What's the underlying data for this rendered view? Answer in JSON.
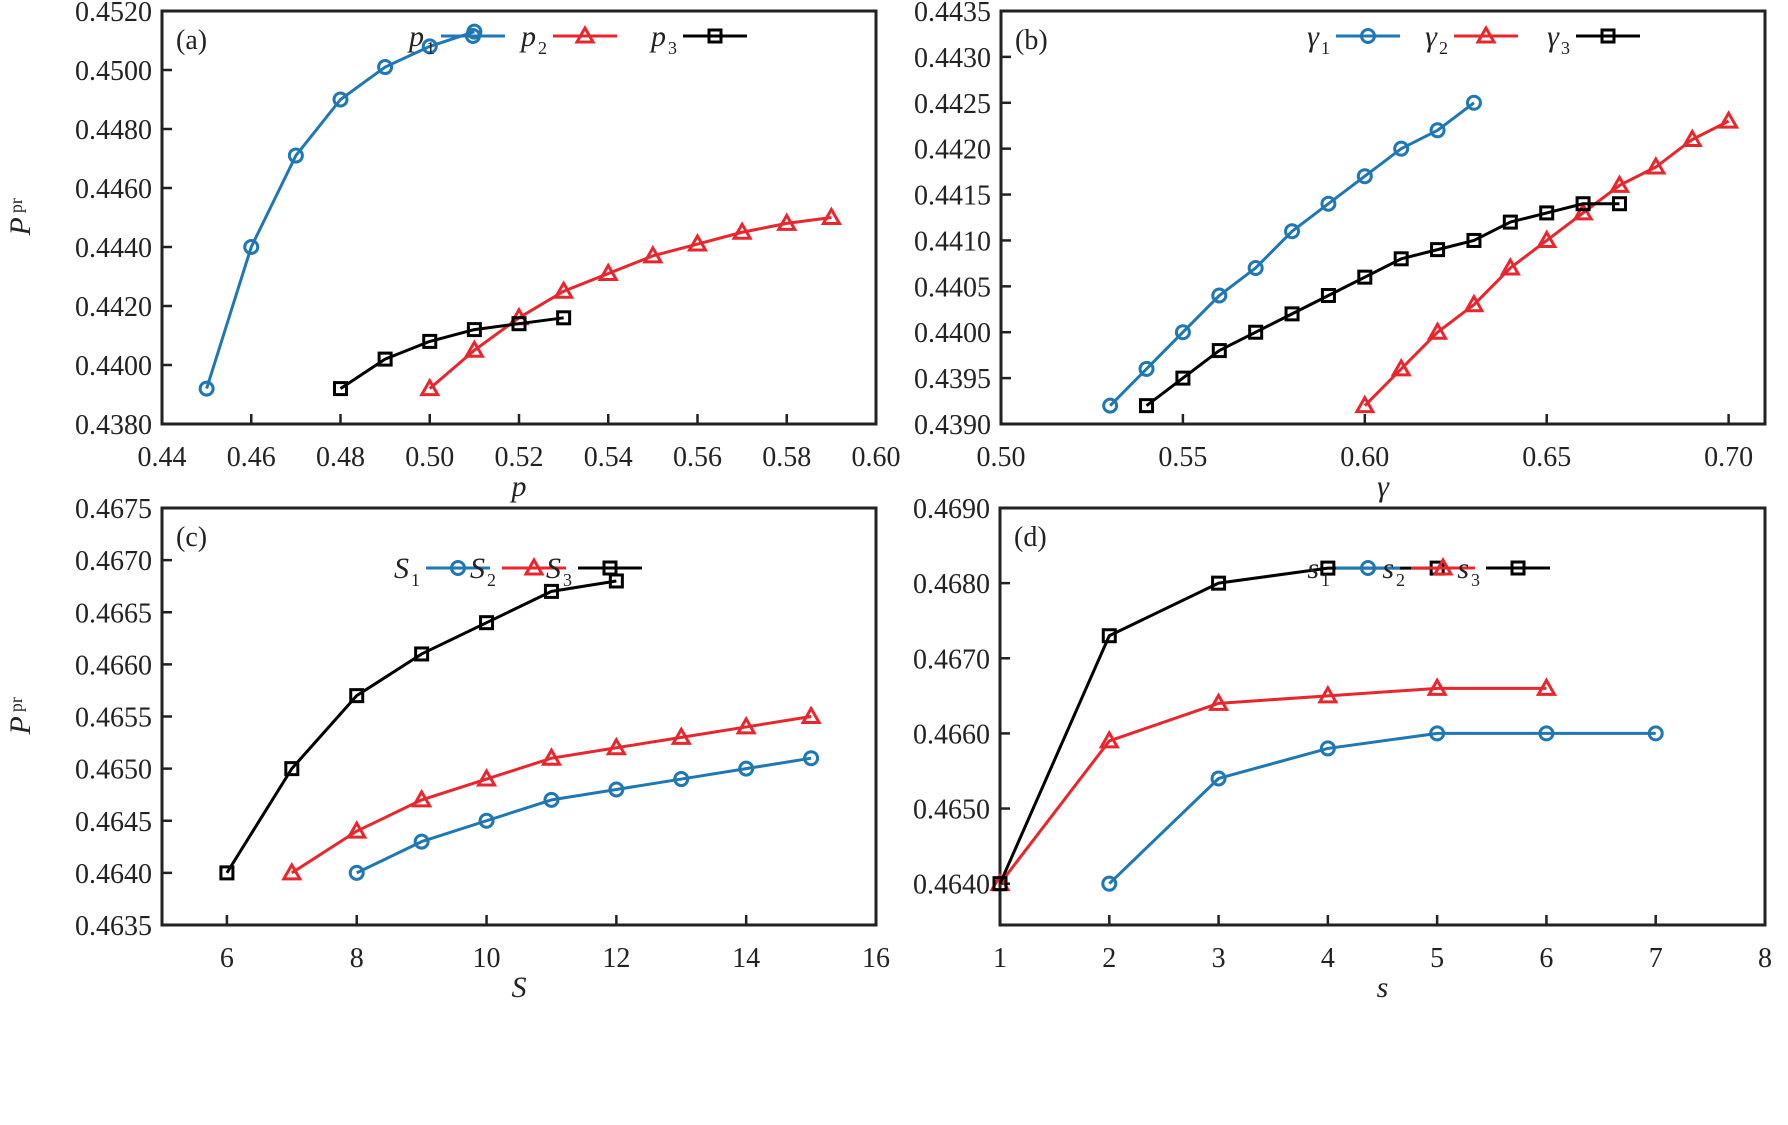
{
  "chart_data": [
    {
      "type": "line",
      "panel_label": "(a)",
      "xlabel": "p",
      "ylabel": "P",
      "ylabel_sub": "pr",
      "xlim": [
        0.44,
        0.6
      ],
      "ylim": [
        0.438,
        0.452
      ],
      "xticks": [
        "0.44",
        "0.46",
        "0.48",
        "0.50",
        "0.52",
        "0.54",
        "0.56",
        "0.58",
        "0.60"
      ],
      "yticks": [
        "0.4380",
        "0.4400",
        "0.4420",
        "0.4440",
        "0.4460",
        "0.4480",
        "0.4500",
        "0.4520"
      ],
      "legend_position": "top-right",
      "series": [
        {
          "name": "p",
          "sub": "1",
          "color": "#1f77b4",
          "marker": "circle",
          "x": [
            0.45,
            0.46,
            0.47,
            0.48,
            0.49,
            0.5,
            0.51
          ],
          "y": [
            0.4392,
            0.444,
            0.4471,
            0.449,
            0.4501,
            0.4508,
            0.4513
          ]
        },
        {
          "name": "p",
          "sub": "2",
          "color": "#e8262d",
          "marker": "triangle",
          "x": [
            0.5,
            0.51,
            0.52,
            0.53,
            0.54,
            0.55,
            0.56,
            0.57,
            0.58,
            0.59
          ],
          "y": [
            0.4392,
            0.4405,
            0.4416,
            0.4425,
            0.4431,
            0.4437,
            0.4441,
            0.4445,
            0.4448,
            0.445
          ]
        },
        {
          "name": "p",
          "sub": "3",
          "color": "#000000",
          "marker": "square",
          "x": [
            0.48,
            0.49,
            0.5,
            0.51,
            0.52,
            0.53
          ],
          "y": [
            0.4392,
            0.4402,
            0.4408,
            0.4412,
            0.4414,
            0.4416
          ]
        }
      ]
    },
    {
      "type": "line",
      "panel_label": "(b)",
      "xlabel": "γ",
      "ylabel": "",
      "ylabel_sub": "",
      "xlim": [
        0.5,
        0.71
      ],
      "ylim": [
        0.439,
        0.4435
      ],
      "xticks": [
        "0.50",
        "0.55",
        "0.60",
        "0.65",
        "0.70"
      ],
      "yticks": [
        "0.4390",
        "0.4395",
        "0.4400",
        "0.4405",
        "0.4410",
        "0.4415",
        "0.4420",
        "0.4425",
        "0.4430",
        "0.4435"
      ],
      "legend_position": "top-right",
      "series": [
        {
          "name": "γ",
          "sub": "1",
          "color": "#1f77b4",
          "marker": "circle",
          "x": [
            0.53,
            0.54,
            0.55,
            0.56,
            0.57,
            0.58,
            0.59,
            0.6,
            0.61,
            0.62,
            0.63
          ],
          "y": [
            0.4392,
            0.4396,
            0.44,
            0.4404,
            0.4407,
            0.4411,
            0.4414,
            0.4417,
            0.442,
            0.4422,
            0.4425
          ]
        },
        {
          "name": "γ",
          "sub": "2",
          "color": "#e8262d",
          "marker": "triangle",
          "x": [
            0.6,
            0.61,
            0.62,
            0.63,
            0.64,
            0.65,
            0.66,
            0.67,
            0.68,
            0.69,
            0.7
          ],
          "y": [
            0.4392,
            0.4396,
            0.44,
            0.4403,
            0.4407,
            0.441,
            0.4413,
            0.4416,
            0.4418,
            0.4421,
            0.4423
          ]
        },
        {
          "name": "γ",
          "sub": "3",
          "color": "#000000",
          "marker": "square",
          "x": [
            0.54,
            0.55,
            0.56,
            0.57,
            0.58,
            0.59,
            0.6,
            0.61,
            0.62,
            0.63,
            0.64,
            0.65,
            0.66,
            0.67
          ],
          "y": [
            0.4392,
            0.4395,
            0.4398,
            0.44,
            0.4402,
            0.4404,
            0.4406,
            0.4408,
            0.4409,
            0.441,
            0.4412,
            0.4413,
            0.4414,
            0.4414
          ]
        }
      ]
    },
    {
      "type": "line",
      "panel_label": "(c)",
      "xlabel": "S",
      "ylabel": "P",
      "ylabel_sub": "pr",
      "xlim": [
        5,
        16
      ],
      "ylim": [
        0.4635,
        0.4675
      ],
      "xticks": [
        "6",
        "8",
        "10",
        "12",
        "14",
        "16"
      ],
      "yticks": [
        "0.4635",
        "0.4640",
        "0.4645",
        "0.4650",
        "0.4655",
        "0.4660",
        "0.4665",
        "0.4670",
        "0.4675"
      ],
      "legend_position": "top-right",
      "series": [
        {
          "name": "S",
          "sub": "1",
          "color": "#1f77b4",
          "marker": "circle",
          "x": [
            8,
            9,
            10,
            11,
            12,
            13,
            14,
            15
          ],
          "y": [
            0.464,
            0.4643,
            0.4645,
            0.4647,
            0.4648,
            0.4649,
            0.465,
            0.4651
          ]
        },
        {
          "name": "S",
          "sub": "2",
          "color": "#e8262d",
          "marker": "triangle",
          "x": [
            7,
            8,
            9,
            10,
            11,
            12,
            13,
            14,
            15
          ],
          "y": [
            0.464,
            0.4644,
            0.4647,
            0.4649,
            0.4651,
            0.4652,
            0.4653,
            0.4654,
            0.4655
          ]
        },
        {
          "name": "S",
          "sub": "3",
          "color": "#000000",
          "marker": "square",
          "x": [
            6,
            7,
            8,
            9,
            10,
            11,
            12
          ],
          "y": [
            0.464,
            0.465,
            0.4657,
            0.4661,
            0.4664,
            0.4667,
            0.4668
          ]
        }
      ]
    },
    {
      "type": "line",
      "panel_label": "(d)",
      "xlabel": "s",
      "ylabel": "",
      "ylabel_sub": "",
      "xlim": [
        1,
        8
      ],
      "ylim": [
        0.46345,
        0.469
      ],
      "xticks": [
        "1",
        "2",
        "3",
        "4",
        "5",
        "6",
        "7",
        "8"
      ],
      "yticks": [
        "0.4640",
        "0.4650",
        "0.4660",
        "0.4670",
        "0.4680",
        "0.4690"
      ],
      "legend_position": "top-right",
      "series": [
        {
          "name": "s",
          "sub": "1",
          "color": "#1f77b4",
          "marker": "circle",
          "x": [
            2,
            3,
            4,
            5,
            6,
            7
          ],
          "y": [
            0.464,
            0.4654,
            0.4658,
            0.466,
            0.466,
            0.466
          ]
        },
        {
          "name": "s",
          "sub": "2",
          "color": "#e8262d",
          "marker": "triangle",
          "x": [
            1,
            2,
            3,
            4,
            5,
            6
          ],
          "y": [
            0.464,
            0.4659,
            0.4664,
            0.4665,
            0.4666,
            0.4666
          ]
        },
        {
          "name": "s",
          "sub": "3",
          "color": "#000000",
          "marker": "square",
          "x": [
            1,
            2,
            3,
            4,
            5
          ],
          "y": [
            0.464,
            0.4673,
            0.468,
            0.4682,
            0.4682
          ]
        }
      ]
    }
  ]
}
